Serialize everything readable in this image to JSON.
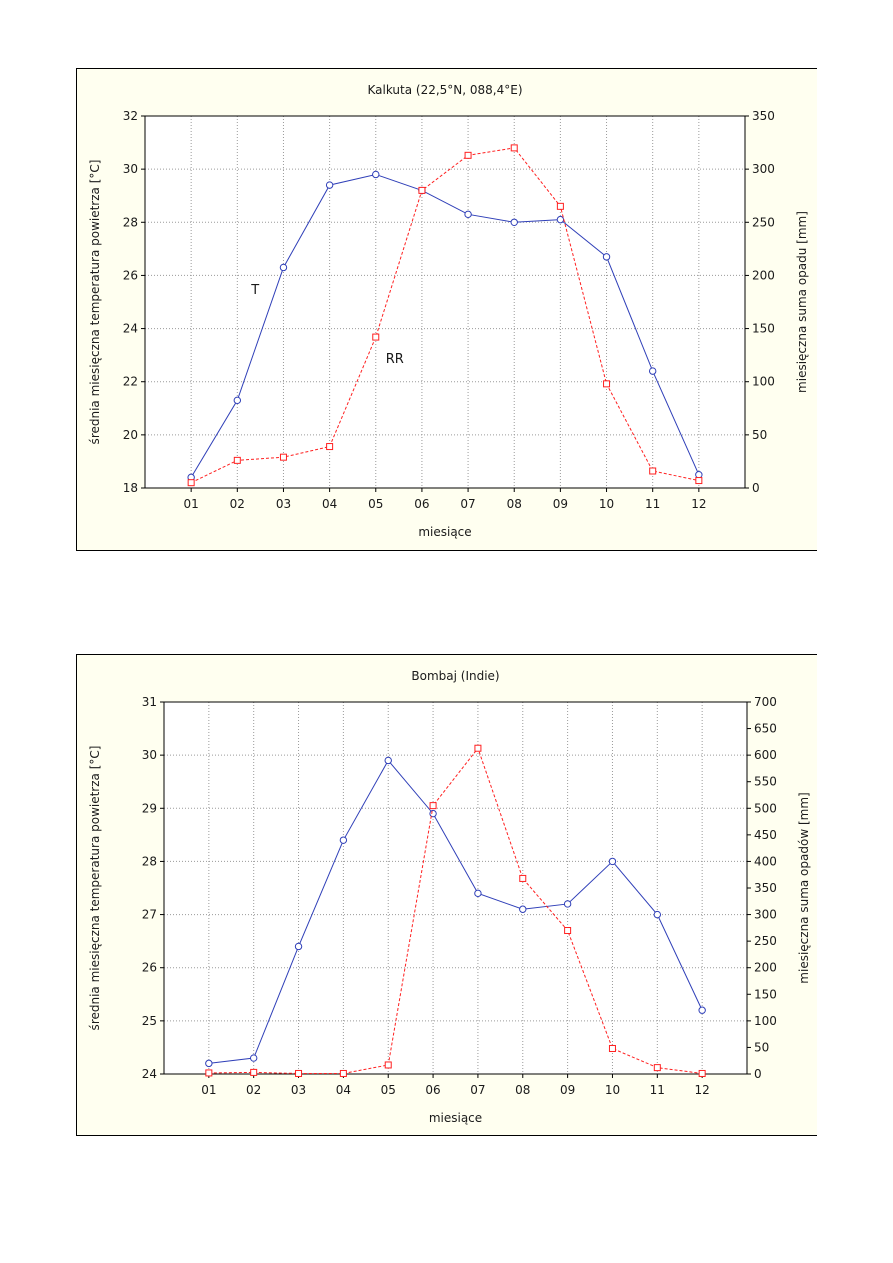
{
  "chart_data": [
    {
      "type": "line",
      "title": "Kalkuta (22,5°N, 088,4°E)",
      "xlabel": "miesiące",
      "ylabel": "średnia miesięczna temperatura powietrza [°C]",
      "y2label": "miesięczna suma opadu [mm]",
      "categories": [
        "01",
        "02",
        "03",
        "04",
        "05",
        "06",
        "07",
        "08",
        "09",
        "10",
        "11",
        "12"
      ],
      "ylim": [
        18,
        32
      ],
      "yticks": [
        "18",
        "20",
        "22",
        "24",
        "26",
        "28",
        "30",
        "32"
      ],
      "y2lim": [
        0,
        350
      ],
      "y2ticks": [
        "0",
        "50",
        "100",
        "150",
        "200",
        "250",
        "300",
        "350"
      ],
      "grid": true,
      "series": [
        {
          "name": "T",
          "axis": "left",
          "color": "#2f3fb8",
          "marker": "circle",
          "values": [
            18.4,
            21.3,
            26.3,
            29.4,
            29.8,
            29.2,
            28.3,
            28.0,
            28.1,
            26.7,
            22.4,
            18.5
          ]
        },
        {
          "name": "RR",
          "axis": "right",
          "color": "#ff2020",
          "marker": "square",
          "values": [
            5,
            26,
            29,
            39,
            142,
            280,
            313,
            320,
            265,
            98,
            16,
            7
          ]
        }
      ]
    },
    {
      "type": "line",
      "title": "Bombaj (Indie)",
      "xlabel": "miesiące",
      "ylabel": "średnia miesięczna temperatura powietrza [°C]",
      "y2label": "miesięczna suma opadów [mm]",
      "categories": [
        "01",
        "02",
        "03",
        "04",
        "05",
        "06",
        "07",
        "08",
        "09",
        "10",
        "11",
        "12"
      ],
      "ylim": [
        24,
        31
      ],
      "yticks": [
        "24",
        "25",
        "26",
        "27",
        "28",
        "29",
        "30",
        "31"
      ],
      "y2lim": [
        0,
        700
      ],
      "y2ticks": [
        "0",
        "50",
        "100",
        "150",
        "200",
        "250",
        "300",
        "350",
        "400",
        "450",
        "500",
        "550",
        "600",
        "650",
        "700"
      ],
      "grid": true,
      "series": [
        {
          "name": "",
          "axis": "left",
          "color": "#2f3fb8",
          "marker": "circle",
          "values": [
            24.2,
            24.3,
            26.4,
            28.4,
            29.9,
            28.9,
            27.4,
            27.1,
            27.2,
            28.0,
            27.0,
            25.2
          ]
        },
        {
          "name": "",
          "axis": "right",
          "color": "#ff2020",
          "marker": "square",
          "values": [
            2,
            3,
            1,
            1,
            17,
            505,
            613,
            368,
            270,
            48,
            12,
            1
          ]
        }
      ]
    }
  ]
}
